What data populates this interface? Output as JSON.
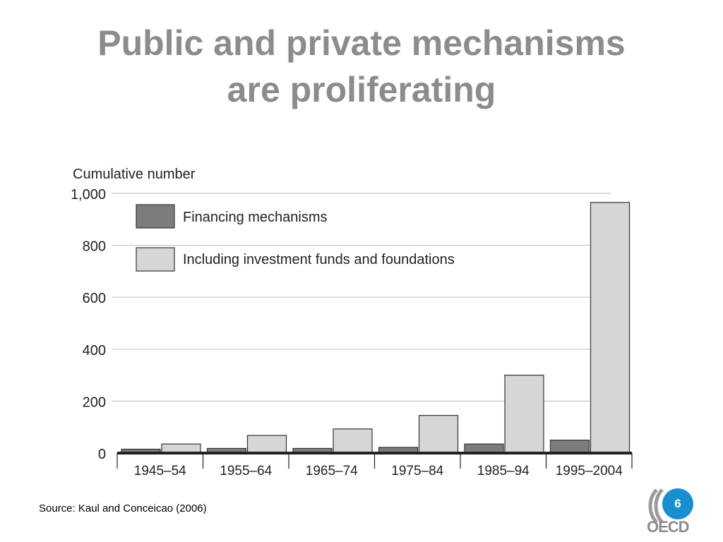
{
  "slide": {
    "title_line1": "Public and private mechanisms",
    "title_line2": "are proliferating",
    "source": "Source: Kaul and Conceicao (2006)",
    "page_number": "6",
    "logo_text": "OECD"
  },
  "colors": {
    "financing": "#7b7d7d",
    "including": "#d4d6d7",
    "grid": "#c8c8c8",
    "axis": "#222222",
    "title": "#8c8c8c",
    "badge": "#1a8fd0"
  },
  "chart_data": {
    "type": "bar",
    "ylabel": "Cumulative number",
    "categories": [
      "1945–54",
      "1955–64",
      "1965–74",
      "1975–84",
      "1985–94",
      "1995–2004"
    ],
    "series": [
      {
        "name": "Financing mechanisms",
        "values": [
          15,
          18,
          18,
          22,
          35,
          50
        ]
      },
      {
        "name": "Including investment funds and foundations",
        "values": [
          35,
          68,
          93,
          145,
          300,
          965
        ]
      }
    ],
    "ylim": [
      0,
      1000
    ],
    "yticks": [
      0,
      200,
      400,
      600,
      800,
      1000
    ],
    "ytick_labels": [
      "0",
      "200",
      "400",
      "600",
      "800",
      "1,000"
    ],
    "grid": true,
    "legend_position": "top-left"
  }
}
